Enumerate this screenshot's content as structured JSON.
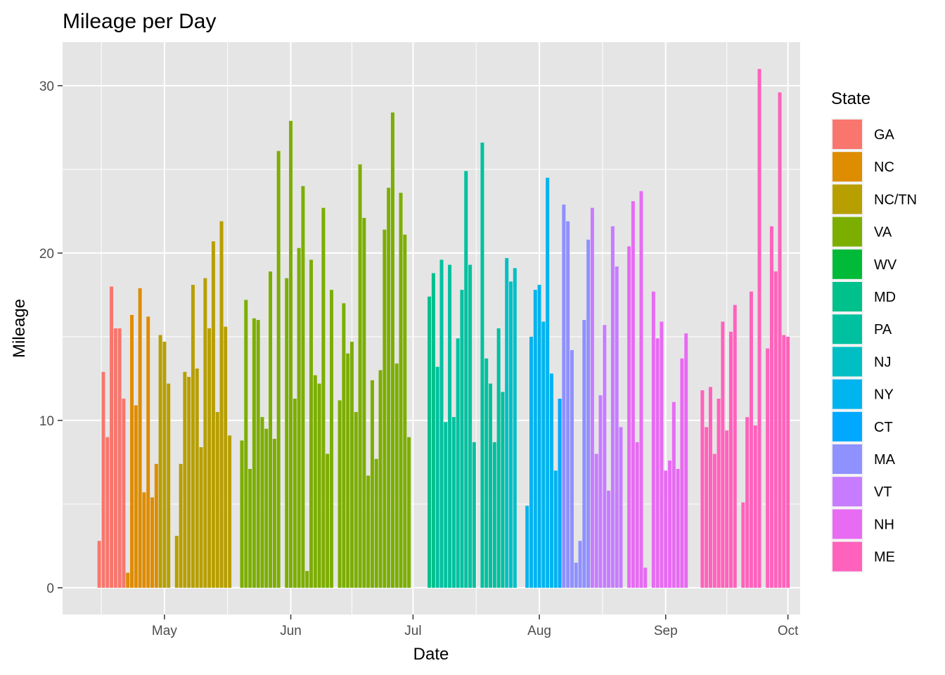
{
  "chart_data": {
    "type": "bar",
    "title": "Mileage per Day",
    "xlabel": "Date",
    "ylabel": "Mileage",
    "x_range": [
      "2018-04-06",
      "2018-10-04"
    ],
    "ylim": [
      -1.6,
      32.6
    ],
    "y_ticks": [
      0,
      10,
      20,
      30
    ],
    "x_ticks": [
      {
        "date": "2018-05-01",
        "label": "May"
      },
      {
        "date": "2018-06-01",
        "label": "Jun"
      },
      {
        "date": "2018-07-01",
        "label": "Jul"
      },
      {
        "date": "2018-08-01",
        "label": "Aug"
      },
      {
        "date": "2018-09-01",
        "label": "Sep"
      },
      {
        "date": "2018-10-01",
        "label": "Oct"
      }
    ],
    "grid": true,
    "panel_background": "#e5e5e5",
    "legend": {
      "title": "State",
      "position": "right"
    },
    "series": [
      {
        "name": "GA",
        "color": "#F8766D",
        "start": "2018-04-15",
        "values": [
          2.8,
          12.9,
          9.0,
          18.0,
          15.5,
          15.5,
          11.3
        ]
      },
      {
        "name": "NC",
        "color": "#DE8C00",
        "start": "2018-04-22",
        "values": [
          0.9,
          16.3,
          10.9,
          17.9,
          5.7,
          16.2,
          5.4,
          7.4
        ]
      },
      {
        "name": "NC/TN",
        "color": "#B79F00",
        "start": "2018-04-30",
        "values": [
          15.1,
          14.7,
          12.2,
          null,
          3.1,
          7.4,
          12.9,
          12.6,
          18.1,
          13.1,
          8.4,
          18.5,
          15.5,
          20.7,
          10.5,
          21.9,
          15.6,
          9.1
        ]
      },
      {
        "name": "VA",
        "color": "#7CAE00",
        "start": "2018-05-20",
        "values": [
          8.8,
          17.2,
          7.1,
          16.1,
          16.0,
          10.2,
          9.5,
          18.9,
          8.9,
          26.1,
          null,
          18.5,
          27.9,
          11.3,
          20.3,
          24.0,
          1.0,
          19.6,
          12.7,
          12.2,
          22.7,
          8.0,
          17.8,
          null,
          11.2,
          17.0,
          14.0,
          14.7,
          10.5,
          25.3,
          22.1,
          6.7,
          12.4,
          7.7,
          13.0,
          21.4,
          23.9,
          28.4,
          13.4,
          23.6,
          21.1,
          9.0
        ]
      },
      {
        "name": "WV",
        "color": "#00BA38",
        "start": "2018-07-01",
        "values": []
      },
      {
        "name": "MD",
        "color": "#00C08B",
        "start": "2018-07-05",
        "values": [
          17.4,
          18.8
        ]
      },
      {
        "name": "PA",
        "color": "#00C19F",
        "start": "2018-07-07",
        "values": [
          13.2,
          19.6,
          9.9,
          19.3,
          10.2,
          14.9,
          17.8,
          24.9,
          19.3,
          8.7,
          null,
          26.6,
          13.7,
          12.2,
          8.7,
          15.5,
          11.7
        ]
      },
      {
        "name": "NJ",
        "color": "#00BFC4",
        "start": "2018-07-24",
        "values": [
          19.7,
          18.3,
          19.1
        ]
      },
      {
        "name": "NY",
        "color": "#00B4F0",
        "start": "2018-07-29",
        "values": [
          4.9,
          15.0,
          17.8,
          18.1,
          15.9,
          24.5,
          12.8,
          7.0
        ]
      },
      {
        "name": "CT",
        "color": "#00A9FF",
        "start": "2018-08-06",
        "values": [
          11.3
        ]
      },
      {
        "name": "MA",
        "color": "#8F91FF",
        "start": "2018-08-07",
        "values": [
          22.9,
          21.9,
          14.2,
          1.5,
          2.8,
          16.0,
          20.8
        ]
      },
      {
        "name": "VT",
        "color": "#C77CFF",
        "start": "2018-08-14",
        "values": [
          22.7,
          8.0,
          11.5,
          15.7,
          5.8,
          21.6,
          19.2,
          9.6
        ]
      },
      {
        "name": "NH",
        "color": "#E76BF3",
        "start": "2018-08-23",
        "values": [
          20.4,
          23.1,
          8.7,
          23.7,
          1.2,
          null,
          17.7,
          14.9,
          15.9,
          7.0,
          7.6,
          11.1,
          7.1,
          13.7,
          15.2
        ]
      },
      {
        "name": "ME",
        "color": "#FF62BC",
        "start": "2018-09-10",
        "values": [
          11.8,
          9.6,
          12.0,
          8.0,
          11.3,
          15.9,
          9.4,
          15.3,
          16.9,
          null,
          5.1,
          10.2,
          17.7,
          9.7,
          31.0,
          null,
          14.3,
          21.6,
          18.9,
          29.6,
          15.1,
          15.0
        ]
      }
    ]
  }
}
